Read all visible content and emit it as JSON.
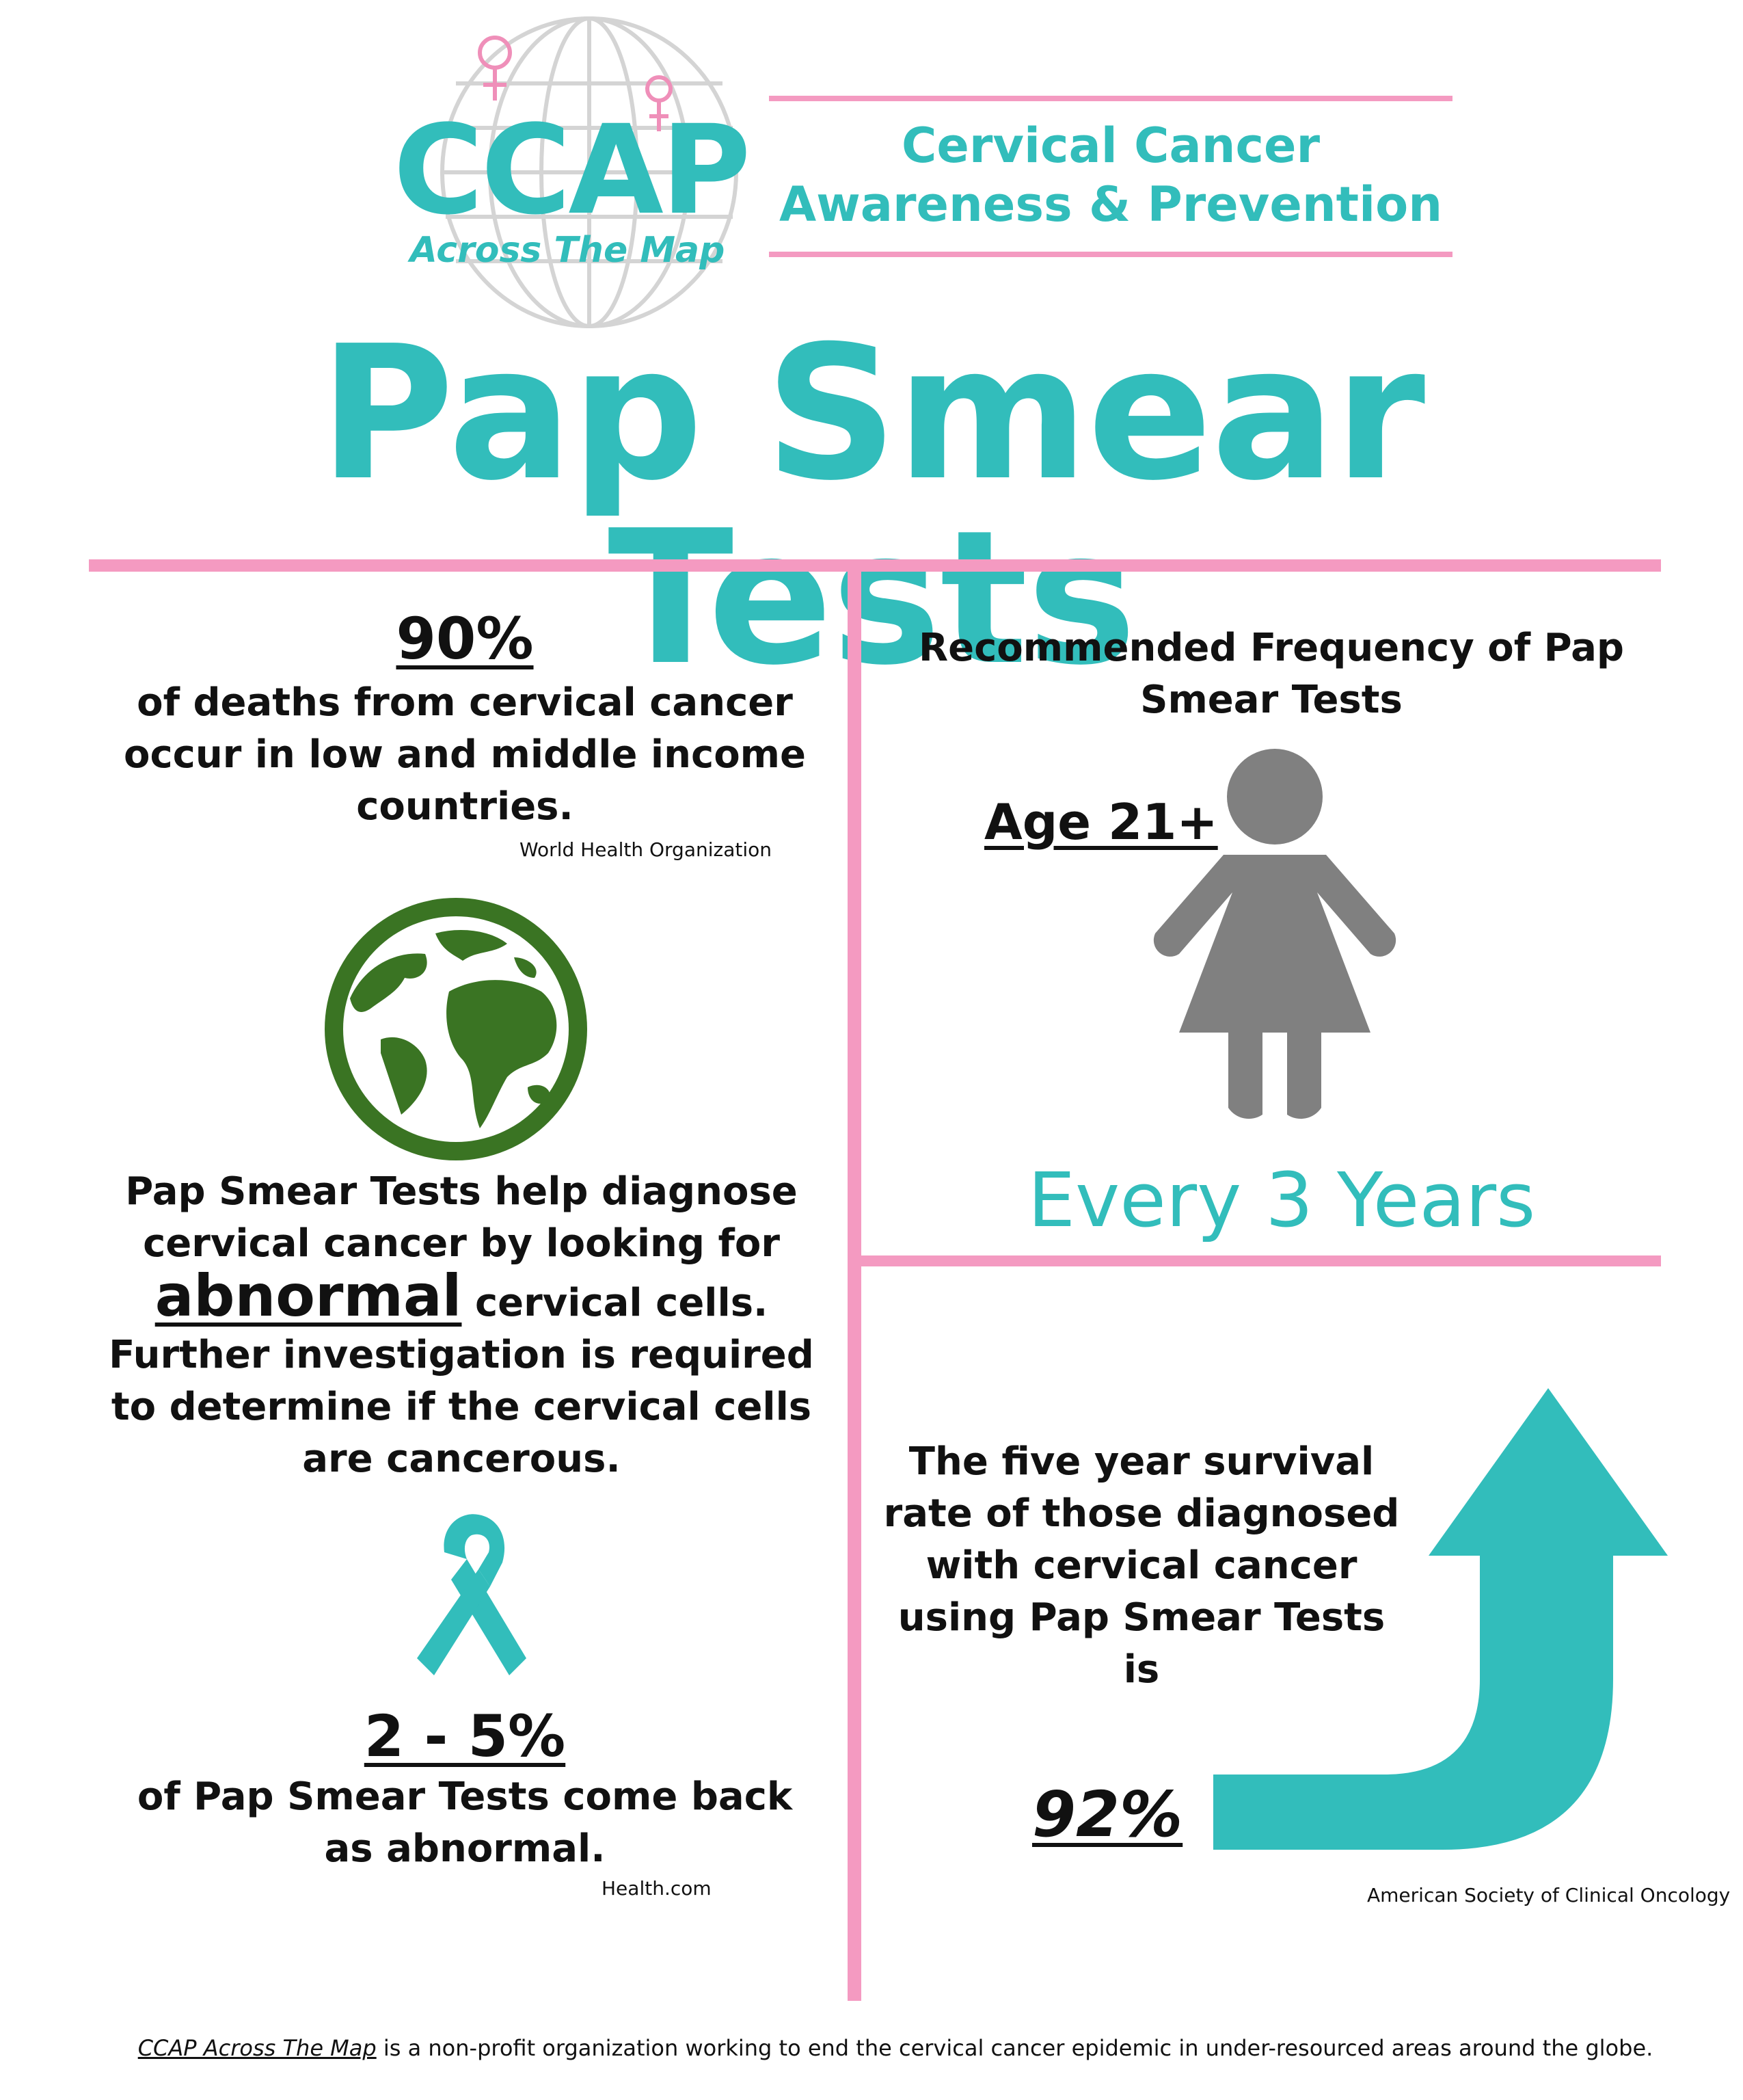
{
  "colors": {
    "teal": "#32bdbb",
    "pink": "#f49ac1",
    "green": "#3a7423",
    "gray": "#808080"
  },
  "logo": {
    "name": "CCAP",
    "tagline": "Across The Map"
  },
  "header": {
    "subtitle_line1": "Cervical Cancer",
    "subtitle_line2": "Awareness & Prevention"
  },
  "title": "Pap Smear Tests",
  "left": {
    "stat1": {
      "value": "90%",
      "text": "of deaths from cervical cancer occur in low and middle income countries.",
      "source": "World Health Organization"
    },
    "globe_icon": "globe-icon",
    "pap_info": {
      "line1": "Pap Smear Tests help diagnose cervical cancer by looking for",
      "emphasis": "abnormal",
      "line2": "cervical cells.",
      "line3": "Further investigation is required to determine if the cervical cells are cancerous."
    },
    "ribbon_icon": "awareness-ribbon-icon",
    "stat2": {
      "value": "2 - 5%",
      "text": "of Pap Smear Tests come back as abnormal.",
      "source": "Health.com"
    }
  },
  "right": {
    "frequency_title": "Recommended Frequency of Pap Smear Tests",
    "age_label": "Age 21+",
    "woman_icon": "woman-icon",
    "frequency": "Every 3 Years",
    "survival_text": "The five year survival rate of those diagnosed with cervical cancer using Pap Smear Tests is",
    "arrow_icon": "up-arrow-icon",
    "stat3": {
      "value": "92%",
      "source": "American Society of Clinical Oncology"
    }
  },
  "footer": {
    "org_name": "CCAP Across The Map",
    "text": " is a non-profit organization working to end the cervical cancer epidemic in under-resourced areas around the globe."
  }
}
